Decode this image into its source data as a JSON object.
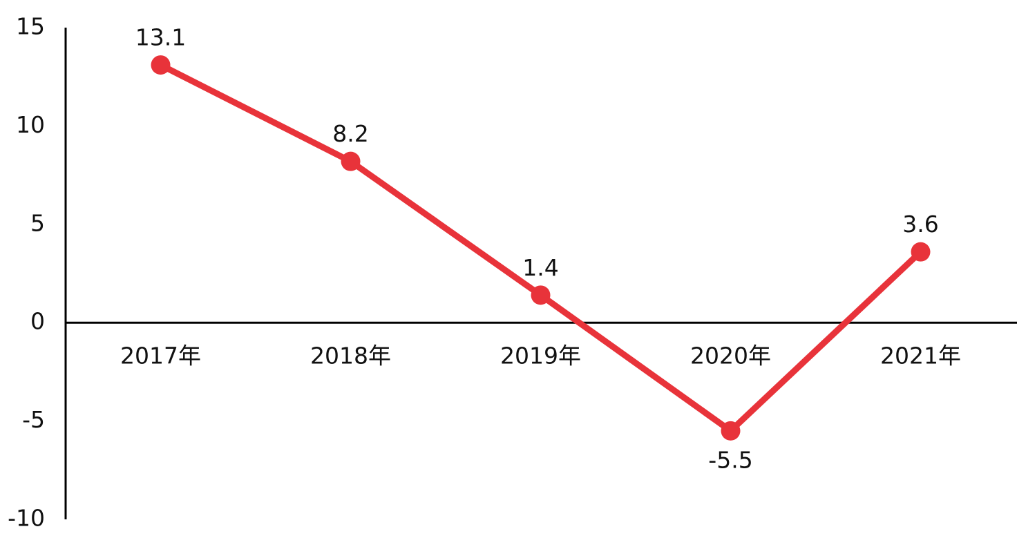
{
  "chart_data": {
    "type": "line",
    "categories": [
      "2017年",
      "2018年",
      "2019年",
      "2020年",
      "2021年"
    ],
    "values": [
      13.1,
      8.2,
      1.4,
      -5.5,
      3.6
    ],
    "color": "#e8333a",
    "ylim": [
      -10,
      15
    ],
    "yticks": [
      -10,
      -5,
      0,
      5,
      10,
      15
    ]
  }
}
